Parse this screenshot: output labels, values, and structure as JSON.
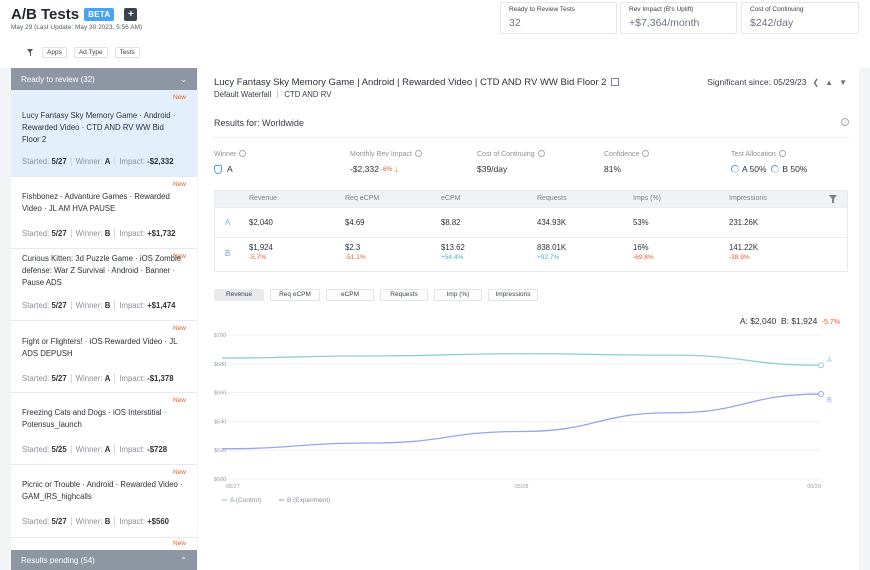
{
  "header": {
    "title": "A/B Tests",
    "beta": "BETA",
    "subtitle": "May 29 (Last Update: May 30 2023, 5:56 AM)",
    "filters": [
      "Apps",
      "Ad Type",
      "Tests"
    ],
    "kpis": [
      {
        "label": "Ready to Review Tests",
        "value": "32"
      },
      {
        "label": "Rev Impact (B's Uplift)",
        "value": "+$7,364/month"
      },
      {
        "label": "Cost of Continuing",
        "value": "$242/day"
      }
    ]
  },
  "sidebar": {
    "ready_label": "Ready to review (32)",
    "pending_label": "Results pending (54)",
    "items": [
      {
        "name": "Lucy  Fantasy Sky Memory Game · Android · Rewarded Video · CTD AND RV WW Bid Floor 2",
        "badge": "New",
        "started_label": "Started:",
        "started": "5/27",
        "winner_label": "Winner:",
        "winner": "A",
        "impact_label": "Impact:",
        "impact": "-$2,332"
      },
      {
        "name": "Fishbonez - Advanture Games · Rewarded Video · JL AM HVA PAUSE",
        "badge": "New",
        "started_label": "Started:",
        "started": "5/27",
        "winner_label": "Winner:",
        "winner": "B",
        "impact_label": "Impact:",
        "impact": "+$1,732"
      },
      {
        "name": "Curious Kitten: 3d Puzzle Game · iOS Zombie defense: War Z Survival · Android · Banner · Pause ADS",
        "badge": "New",
        "started_label": "Started:",
        "started": "5/27",
        "winner_label": "Winner:",
        "winner": "B",
        "impact_label": "Impact:",
        "impact": "+$1,474"
      },
      {
        "name": "Fight or Flighters! · iOS Rewarded Video · JL ADS DEPUSH",
        "badge": "New",
        "started_label": "Started:",
        "started": "5/27",
        "winner_label": "Winner:",
        "winner": "A",
        "impact_label": "Impact:",
        "impact": "-$1,378"
      },
      {
        "name": "Freezing Cats and Dogs · iOS Interstitial · Potensus_launch",
        "badge": "New",
        "started_label": "Started:",
        "started": "5/25",
        "winner_label": "Winner:",
        "winner": "A",
        "impact_label": "Impact:",
        "impact": "-$728"
      },
      {
        "name": "Picnic or Trouble · Android · Rewarded Video · GAM_IRS_highcalls",
        "badge": "New",
        "started_label": "Started:",
        "started": "5/27",
        "winner_label": "Winner:",
        "winner": "B",
        "impact_label": "Impact:",
        "impact": "+$560"
      },
      {
        "name": "",
        "badge": "New"
      }
    ]
  },
  "detail": {
    "title": "Lucy  Fantasy Sky Memory Game | Android | Rewarded Video | CTD AND RV WW Bid Floor 2",
    "sub1": "Default Waterfall",
    "sub2": "CTD AND RV",
    "significant": "Significant since: 05/29/23",
    "results_for": "Results for: Worldwide",
    "stats": {
      "winner_label": "Winner",
      "winner": "A",
      "monthly_label": "Monthly Rev Impact",
      "monthly": "-$2,332",
      "monthly_delta": "-6%",
      "cost_label": "Cost of Continuing",
      "cost": "$39/day",
      "confidence_label": "Confidence",
      "confidence": "81%",
      "alloc_label": "Test Allocation",
      "alloc_a": "A 50%",
      "alloc_b": "B 50%"
    },
    "table": {
      "headers": [
        "Revenue",
        "Req eCPM",
        "eCPM",
        "Requests",
        "Imps (%)",
        "Impressions"
      ],
      "row_a": {
        "label": "A",
        "cells": [
          "$2,040",
          "$4.69",
          "$8.82",
          "434.93K",
          "53%",
          "231.26K"
        ]
      },
      "row_b": {
        "label": "B",
        "cells": [
          "$1,924",
          "$2.3",
          "$13.62",
          "838.01K",
          "16%",
          "141.22K"
        ],
        "deltas": [
          "-5.7%",
          "-51.1%",
          "+54.4%",
          "+92.7%",
          "-69.8%",
          "-38.9%"
        ]
      }
    },
    "metric_tabs": [
      "Revenue",
      "Req eCPM",
      "eCPM",
      "Requests",
      "Imp (%)",
      "Impressions"
    ],
    "chart_summary": {
      "a": "A: $2,040",
      "b": "B: $1,924",
      "delta": "-5.7%"
    }
  },
  "chart_data": {
    "type": "line",
    "x": [
      "05/27",
      "05/28",
      "05/29"
    ],
    "ylim": [
      600,
      700
    ],
    "yticks": [
      "$700",
      "$680",
      "$660",
      "$640",
      "$620",
      "$600"
    ],
    "series": [
      {
        "name": "A (Control)",
        "points": [
          [
            0,
            684
          ],
          [
            0.25,
            685.5
          ],
          [
            0.5,
            687
          ],
          [
            0.75,
            686
          ],
          [
            1,
            679
          ]
        ],
        "color": "#8fd0d3"
      },
      {
        "name": "B (Experiment)",
        "points": [
          [
            0,
            621
          ],
          [
            0.25,
            625
          ],
          [
            0.5,
            633
          ],
          [
            0.75,
            646
          ],
          [
            1,
            659
          ]
        ],
        "color": "#9aa3ef"
      }
    ],
    "end_labels": [
      "A",
      "B"
    ],
    "legend": [
      "A (Control)",
      "B (Experiment)"
    ]
  }
}
